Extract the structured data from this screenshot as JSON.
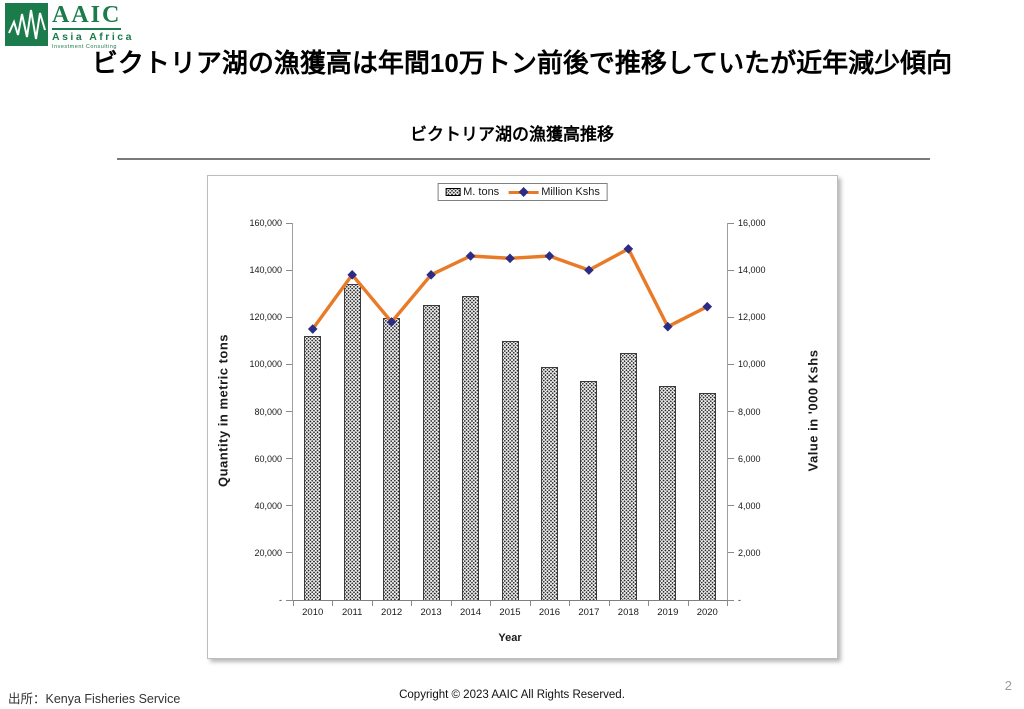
{
  "logo": {
    "acronym": "AAIC",
    "line1": "Asia Africa",
    "line2": "Investment Consulting"
  },
  "slide": {
    "title": "ビクトリア湖の漁獲高は年間10万トン前後で推移していたが近年減少傾向",
    "source": "出所：Kenya Fisheries Service",
    "copyright": "Copyright © 2023 AAIC All Rights Reserved.",
    "page_number": "2"
  },
  "chart_data": {
    "type": "bar",
    "title": "ビクトリア湖の漁獲高推移",
    "categories": [
      "2010",
      "2011",
      "2012",
      "2013",
      "2014",
      "2015",
      "2016",
      "2017",
      "2018",
      "2019",
      "2020"
    ],
    "series": [
      {
        "name": "M. tons",
        "type": "bar",
        "axis": "left",
        "values": [
          112000,
          134000,
          119500,
          125000,
          129000,
          110000,
          99000,
          93000,
          105000,
          91000,
          88000
        ]
      },
      {
        "name": "Million Kshs",
        "type": "line",
        "axis": "right",
        "values": [
          11500,
          13800,
          11800,
          13800,
          14600,
          14500,
          14600,
          14000,
          14900,
          11600,
          12450
        ]
      }
    ],
    "left_axis": {
      "title": "Quantity in metric tons",
      "min": 0,
      "max": 160000,
      "step": 20000,
      "zero_label": "-"
    },
    "right_axis": {
      "title": "Value in '000 Kshs",
      "min": 0,
      "max": 16000,
      "step": 2000,
      "zero_label": "-"
    },
    "x_axis": {
      "title": "Year"
    },
    "legend_position": "top",
    "grid": false,
    "colors": {
      "line": "#E87A28",
      "marker": "#2B2C85",
      "bar_fill": "#F2F2F2",
      "bar_dot": "#1A1A1A",
      "logo_green": "#1B7B4A"
    }
  }
}
